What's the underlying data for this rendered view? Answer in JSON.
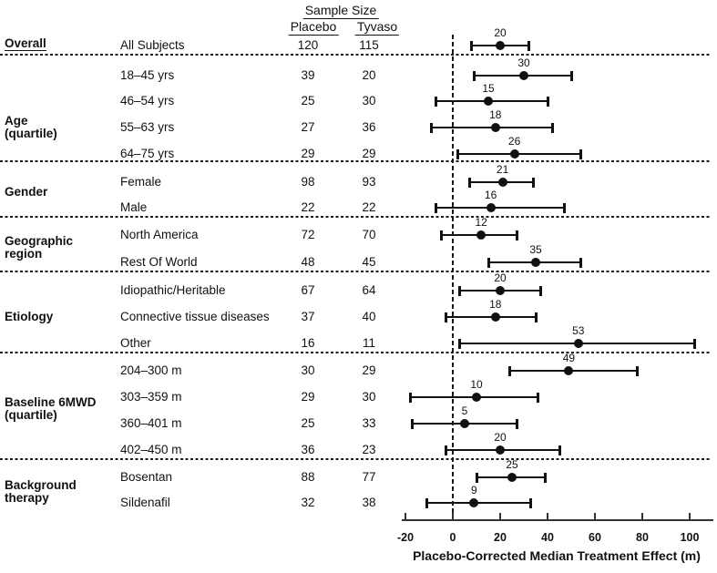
{
  "header": {
    "sample_size": "Sample Size",
    "placebo": "Placebo",
    "tyvaso": "Tyvaso"
  },
  "chart_data": {
    "type": "forest",
    "title": "",
    "xlabel": "Placebo-Corrected Median Treatment Effect (m)",
    "xticks": [
      -20,
      0,
      20,
      40,
      60,
      80,
      100
    ],
    "xlim": [
      -22,
      110
    ],
    "reference_x": 0,
    "sample_size_columns": [
      "Placebo",
      "Tyvaso"
    ],
    "groups": [
      {
        "label": [
          "Overall"
        ],
        "rows": [
          {
            "subgroup": "All Subjects",
            "placebo_n": 120,
            "tyvaso_n": 115,
            "effect": 20,
            "ci_low": 8,
            "ci_high": 32
          }
        ]
      },
      {
        "label": [
          "Age",
          "(quartile)"
        ],
        "rows": [
          {
            "subgroup": "18–45 yrs",
            "placebo_n": 39,
            "tyvaso_n": 20,
            "effect": 30,
            "ci_low": 9,
            "ci_high": 50
          },
          {
            "subgroup": "46–54 yrs",
            "placebo_n": 25,
            "tyvaso_n": 30,
            "effect": 15,
            "ci_low": -7,
            "ci_high": 40
          },
          {
            "subgroup": "55–63 yrs",
            "placebo_n": 27,
            "tyvaso_n": 36,
            "effect": 18,
            "ci_low": -9,
            "ci_high": 42
          },
          {
            "subgroup": "64–75 yrs",
            "placebo_n": 29,
            "tyvaso_n": 29,
            "effect": 26,
            "ci_low": 2,
            "ci_high": 54
          }
        ]
      },
      {
        "label": [
          "Gender"
        ],
        "rows": [
          {
            "subgroup": "Female",
            "placebo_n": 98,
            "tyvaso_n": 93,
            "effect": 21,
            "ci_low": 7,
            "ci_high": 34
          },
          {
            "subgroup": "Male",
            "placebo_n": 22,
            "tyvaso_n": 22,
            "effect": 16,
            "ci_low": -7,
            "ci_high": 47
          }
        ]
      },
      {
        "label": [
          "Geographic",
          "region"
        ],
        "rows": [
          {
            "subgroup": "North America",
            "placebo_n": 72,
            "tyvaso_n": 70,
            "effect": 12,
            "ci_low": -5,
            "ci_high": 27
          },
          {
            "subgroup": "Rest Of World",
            "placebo_n": 48,
            "tyvaso_n": 45,
            "effect": 35,
            "ci_low": 15,
            "ci_high": 54
          }
        ]
      },
      {
        "label": [
          "Etiology"
        ],
        "rows": [
          {
            "subgroup": "Idiopathic/Heritable",
            "placebo_n": 67,
            "tyvaso_n": 64,
            "effect": 20,
            "ci_low": 3,
            "ci_high": 37
          },
          {
            "subgroup": "Connective tissue diseases",
            "placebo_n": 37,
            "tyvaso_n": 40,
            "effect": 18,
            "ci_low": -3,
            "ci_high": 35
          },
          {
            "subgroup": "Other",
            "placebo_n": 16,
            "tyvaso_n": 11,
            "effect": 53,
            "ci_low": 3,
            "ci_high": 102
          }
        ]
      },
      {
        "label": [
          "Baseline 6MWD",
          "(quartile)"
        ],
        "rows": [
          {
            "subgroup": "204–300 m",
            "placebo_n": 30,
            "tyvaso_n": 29,
            "effect": 49,
            "ci_low": 24,
            "ci_high": 78
          },
          {
            "subgroup": "303–359 m",
            "placebo_n": 29,
            "tyvaso_n": 30,
            "effect": 10,
            "ci_low": -18,
            "ci_high": 36
          },
          {
            "subgroup": "360–401 m",
            "placebo_n": 25,
            "tyvaso_n": 33,
            "effect": 5,
            "ci_low": -17,
            "ci_high": 27
          },
          {
            "subgroup": "402–450 m",
            "placebo_n": 36,
            "tyvaso_n": 23,
            "effect": 20,
            "ci_low": -3,
            "ci_high": 45
          }
        ]
      },
      {
        "label": [
          "Background",
          "therapy"
        ],
        "rows": [
          {
            "subgroup": "Bosentan",
            "placebo_n": 88,
            "tyvaso_n": 77,
            "effect": 25,
            "ci_low": 10,
            "ci_high": 39
          },
          {
            "subgroup": "Sildenafil",
            "placebo_n": 32,
            "tyvaso_n": 38,
            "effect": 9,
            "ci_low": -11,
            "ci_high": 33
          }
        ]
      }
    ]
  }
}
